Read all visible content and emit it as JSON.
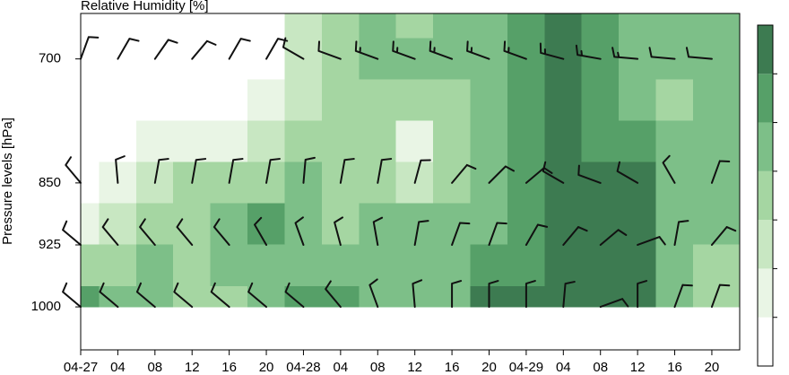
{
  "chart_data": {
    "type": "contour",
    "title": "Relative Humidity [%]",
    "y_label": "Pressure levels [hPa]",
    "x": [
      0,
      4,
      8,
      12,
      16,
      20,
      24,
      28,
      32,
      36,
      40,
      44,
      48,
      52,
      56,
      60,
      64,
      68
    ],
    "y": [
      650,
      700,
      750,
      800,
      850,
      900,
      950,
      1000
    ],
    "z": [
      [
        40,
        40,
        40,
        40,
        40,
        45,
        65,
        75,
        80,
        75,
        80,
        85,
        92,
        96,
        90,
        85,
        80,
        80
      ],
      [
        40,
        40,
        40,
        40,
        40,
        45,
        60,
        75,
        80,
        80,
        82,
        85,
        92,
        95,
        92,
        85,
        80,
        80
      ],
      [
        40,
        40,
        40,
        40,
        45,
        52,
        62,
        72,
        75,
        70,
        75,
        85,
        90,
        96,
        92,
        88,
        75,
        80
      ],
      [
        40,
        45,
        52,
        55,
        58,
        62,
        70,
        72,
        72,
        55,
        70,
        85,
        92,
        96,
        92,
        92,
        80,
        85
      ],
      [
        45,
        55,
        65,
        70,
        72,
        78,
        85,
        78,
        75,
        65,
        78,
        88,
        90,
        96,
        96,
        95,
        88,
        88
      ],
      [
        52,
        65,
        75,
        78,
        80,
        92,
        88,
        78,
        80,
        80,
        82,
        85,
        92,
        96,
        98,
        95,
        85,
        80
      ],
      [
        72,
        78,
        85,
        72,
        80,
        82,
        88,
        85,
        88,
        85,
        85,
        92,
        92,
        96,
        98,
        95,
        80,
        70
      ],
      [
        90,
        85,
        85,
        72,
        70,
        80,
        92,
        92,
        88,
        85,
        85,
        96,
        98,
        98,
        98,
        95,
        85,
        75
      ]
    ],
    "xlim": [
      0,
      71
    ],
    "xticks": [
      {
        "value": 0,
        "label": "04-27"
      },
      {
        "value": 4,
        "label": "04"
      },
      {
        "value": 8,
        "label": "08"
      },
      {
        "value": 12,
        "label": "12"
      },
      {
        "value": 16,
        "label": "16"
      },
      {
        "value": 20,
        "label": "20"
      },
      {
        "value": 24,
        "label": "04-28"
      },
      {
        "value": 28,
        "label": "04"
      },
      {
        "value": 32,
        "label": "08"
      },
      {
        "value": 36,
        "label": "12"
      },
      {
        "value": 40,
        "label": "16"
      },
      {
        "value": 44,
        "label": "20"
      },
      {
        "value": 48,
        "label": "04-29"
      },
      {
        "value": 52,
        "label": "04"
      },
      {
        "value": 56,
        "label": "08"
      },
      {
        "value": 60,
        "label": "12"
      },
      {
        "value": 64,
        "label": "16"
      },
      {
        "value": 68,
        "label": "20"
      }
    ],
    "ylim": [
      1052,
      645
    ],
    "yticks": [
      700,
      850,
      925,
      1000
    ],
    "levels": [
      50,
      60,
      70,
      80,
      90,
      95
    ],
    "colors": [
      "#ffffff",
      "#e9f5e5",
      "#c8e7c2",
      "#a5d6a2",
      "#7dbf88",
      "#56a068",
      "#3d7b51"
    ],
    "wind": {
      "levels": [
        700,
        850,
        925,
        1000
      ],
      "direction": [
        [
          20,
          30,
          35,
          40,
          30,
          30,
          300,
          290,
          290,
          290,
          290,
          290,
          290,
          285,
          280,
          275,
          275,
          275
        ],
        [
          320,
          355,
          10,
          10,
          10,
          10,
          5,
          10,
          10,
          15,
          40,
          45,
          50,
          300,
          290,
          300,
          330,
          20
        ],
        [
          310,
          320,
          320,
          320,
          320,
          330,
          340,
          345,
          350,
          10,
          20,
          20,
          30,
          40,
          50,
          70,
          10,
          40
        ],
        [
          310,
          310,
          310,
          310,
          310,
          310,
          310,
          320,
          340,
          355,
          0,
          0,
          0,
          5,
          70,
          0,
          20,
          20
        ]
      ],
      "speed": [
        [
          10,
          10,
          10,
          10,
          10,
          10,
          10,
          10,
          15,
          15,
          15,
          15,
          15,
          15,
          15,
          15,
          10,
          10
        ],
        [
          10,
          10,
          10,
          10,
          10,
          10,
          10,
          10,
          10,
          10,
          10,
          10,
          10,
          10,
          10,
          10,
          10,
          10
        ],
        [
          10,
          10,
          10,
          10,
          10,
          10,
          10,
          10,
          10,
          10,
          10,
          10,
          10,
          10,
          10,
          10,
          10,
          10
        ],
        [
          10,
          10,
          10,
          10,
          10,
          10,
          10,
          10,
          10,
          10,
          10,
          10,
          10,
          10,
          10,
          10,
          10,
          10
        ]
      ]
    }
  }
}
